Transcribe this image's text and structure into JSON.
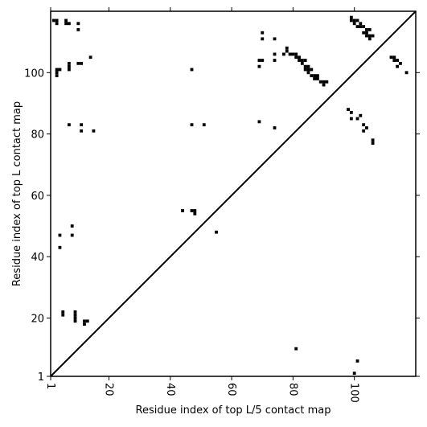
{
  "chart_data": {
    "type": "scatter",
    "title": "",
    "xlabel": "Residue index of top L/5 contact map",
    "ylabel": "Residue index of top L contact map",
    "xlim": [
      1,
      120
    ],
    "ylim": [
      1,
      120
    ],
    "x_ticks": [
      1,
      20,
      40,
      60,
      80,
      100
    ],
    "y_ticks": [
      1,
      20,
      40,
      60,
      80,
      100
    ],
    "grid": false,
    "diagonal": true,
    "series": [
      {
        "marker": "square",
        "color": "#000000",
        "points_upper_left": [
          [
            2,
            117
          ],
          [
            3,
            117
          ],
          [
            3,
            116
          ],
          [
            6,
            117
          ],
          [
            6,
            116
          ],
          [
            7,
            116
          ],
          [
            10,
            116
          ],
          [
            10,
            114
          ],
          [
            3,
            101
          ],
          [
            4,
            101
          ],
          [
            3,
            100
          ],
          [
            3,
            99
          ],
          [
            7,
            103
          ],
          [
            7,
            102
          ],
          [
            7,
            101
          ],
          [
            10,
            103
          ],
          [
            11,
            103
          ],
          [
            14,
            105
          ],
          [
            7,
            83
          ],
          [
            11,
            83
          ],
          [
            11,
            81
          ],
          [
            15,
            81
          ],
          [
            47,
            101
          ],
          [
            47,
            83
          ],
          [
            51,
            83
          ],
          [
            44,
            55
          ],
          [
            47,
            55
          ],
          [
            48,
            55
          ],
          [
            48,
            54
          ],
          [
            55,
            48
          ],
          [
            4,
            47
          ],
          [
            8,
            50
          ],
          [
            8,
            47
          ],
          [
            4,
            43
          ],
          [
            5,
            22
          ],
          [
            5,
            21
          ],
          [
            9,
            22
          ],
          [
            9,
            21
          ],
          [
            9,
            20
          ],
          [
            9,
            19
          ],
          [
            12,
            19
          ],
          [
            13,
            19
          ],
          [
            12,
            18
          ],
          [
            70,
            113
          ],
          [
            70,
            111
          ],
          [
            74,
            111
          ],
          [
            69,
            104
          ],
          [
            70,
            104
          ],
          [
            74,
            106
          ],
          [
            74,
            104
          ],
          [
            69,
            102
          ],
          [
            69,
            84
          ],
          [
            74,
            82
          ],
          [
            77,
            106
          ],
          [
            78,
            108
          ],
          [
            78,
            107
          ],
          [
            79,
            106
          ],
          [
            80,
            106
          ],
          [
            81,
            106
          ],
          [
            81,
            105
          ],
          [
            82,
            105
          ],
          [
            82,
            104
          ],
          [
            83,
            104
          ],
          [
            83,
            103
          ],
          [
            84,
            104
          ],
          [
            84,
            102
          ],
          [
            84,
            101
          ],
          [
            85,
            102
          ],
          [
            85,
            101
          ],
          [
            85,
            100
          ],
          [
            86,
            101
          ],
          [
            86,
            99
          ],
          [
            87,
            99
          ],
          [
            87,
            98
          ],
          [
            88,
            99
          ],
          [
            88,
            98
          ],
          [
            89,
            97
          ],
          [
            90,
            97
          ],
          [
            90,
            96
          ],
          [
            91,
            97
          ],
          [
            99,
            118
          ],
          [
            99,
            117
          ],
          [
            100,
            117
          ],
          [
            100,
            116
          ],
          [
            101,
            117
          ],
          [
            101,
            115
          ],
          [
            102,
            116
          ],
          [
            102,
            115
          ],
          [
            103,
            115
          ],
          [
            103,
            113
          ],
          [
            104,
            114
          ],
          [
            104,
            113
          ],
          [
            104,
            112
          ],
          [
            105,
            114
          ],
          [
            105,
            112
          ],
          [
            105,
            111
          ],
          [
            106,
            112
          ],
          [
            98,
            88
          ],
          [
            99,
            87
          ],
          [
            99,
            85
          ],
          [
            101,
            85
          ],
          [
            102,
            86
          ],
          [
            103,
            83
          ],
          [
            103,
            81
          ],
          [
            104,
            82
          ],
          [
            106,
            78
          ],
          [
            106,
            77
          ],
          [
            112,
            105
          ],
          [
            113,
            105
          ],
          [
            113,
            104
          ],
          [
            114,
            104
          ],
          [
            114,
            102
          ],
          [
            115,
            103
          ],
          [
            117,
            100
          ]
        ],
        "points_lower_right": [
          [
            81,
            10
          ],
          [
            101,
            6
          ],
          [
            100,
            2
          ]
        ]
      }
    ]
  }
}
